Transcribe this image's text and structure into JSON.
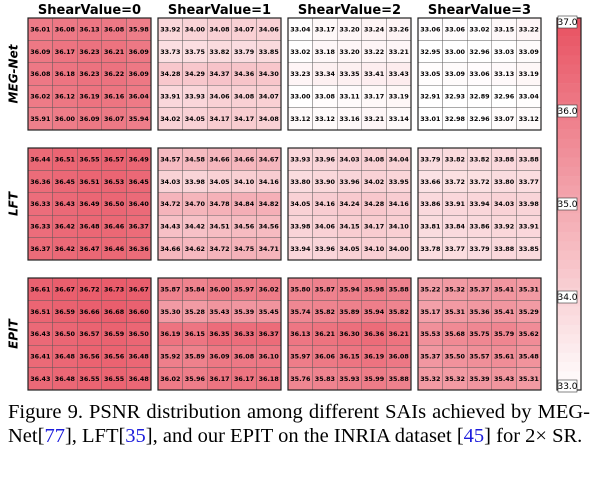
{
  "chart_data": {
    "type": "heatmap",
    "columns": [
      "ShearValue=0",
      "ShearValue=1",
      "ShearValue=2",
      "ShearValue=3"
    ],
    "rows": [
      "MEG-Net",
      "LFT",
      "EPIT"
    ],
    "colorbar": {
      "ticks": [
        "37.0",
        "36.0",
        "35.0",
        "34.0",
        "33.0"
      ],
      "range": [
        33.0,
        37.0
      ]
    },
    "grids": [
      [
        [
          [
            36.01,
            36.08,
            36.13,
            36.08,
            35.98
          ],
          [
            36.09,
            36.17,
            36.23,
            36.21,
            36.09
          ],
          [
            36.08,
            36.18,
            36.23,
            36.22,
            36.09
          ],
          [
            36.02,
            36.12,
            36.19,
            36.16,
            36.04
          ],
          [
            35.91,
            36.0,
            36.09,
            36.07,
            35.94
          ]
        ],
        [
          [
            33.92,
            34.0,
            34.08,
            34.07,
            34.06
          ],
          [
            33.73,
            33.75,
            33.82,
            33.79,
            33.85
          ],
          [
            34.28,
            34.29,
            34.37,
            34.36,
            34.3
          ],
          [
            33.91,
            33.93,
            34.06,
            34.08,
            34.07
          ],
          [
            34.02,
            34.05,
            34.17,
            34.17,
            34.08
          ]
        ],
        [
          [
            33.04,
            33.17,
            33.2,
            33.24,
            33.26
          ],
          [
            33.02,
            33.18,
            33.2,
            33.22,
            33.21
          ],
          [
            33.23,
            33.34,
            33.35,
            33.41,
            33.43
          ],
          [
            33.0,
            33.08,
            33.11,
            33.17,
            33.19
          ],
          [
            33.12,
            33.12,
            33.16,
            33.21,
            33.14
          ]
        ],
        [
          [
            33.06,
            33.06,
            33.02,
            33.15,
            33.22
          ],
          [
            32.95,
            33.0,
            32.96,
            33.03,
            33.09
          ],
          [
            33.05,
            33.09,
            33.06,
            33.13,
            33.19
          ],
          [
            32.91,
            32.93,
            32.89,
            32.96,
            33.04
          ],
          [
            33.01,
            32.98,
            32.96,
            33.07,
            33.12
          ]
        ]
      ],
      [
        [
          [
            36.44,
            36.51,
            36.55,
            36.57,
            36.49
          ],
          [
            36.36,
            36.45,
            36.51,
            36.53,
            36.45
          ],
          [
            36.33,
            36.43,
            36.49,
            36.5,
            36.4
          ],
          [
            36.33,
            36.42,
            36.48,
            36.46,
            36.37
          ],
          [
            36.37,
            36.42,
            36.47,
            36.46,
            36.36
          ]
        ],
        [
          [
            34.57,
            34.58,
            34.66,
            34.66,
            34.67
          ],
          [
            34.03,
            33.98,
            34.05,
            34.1,
            34.16
          ],
          [
            34.72,
            34.7,
            34.78,
            34.84,
            34.82
          ],
          [
            34.43,
            34.42,
            34.51,
            34.56,
            34.56
          ],
          [
            34.66,
            34.62,
            34.72,
            34.75,
            34.71
          ]
        ],
        [
          [
            33.93,
            33.96,
            34.03,
            34.08,
            34.04
          ],
          [
            33.8,
            33.9,
            33.96,
            34.02,
            33.95
          ],
          [
            34.05,
            34.16,
            34.24,
            34.28,
            34.16
          ],
          [
            33.98,
            34.06,
            34.15,
            34.17,
            34.1
          ],
          [
            33.94,
            33.96,
            34.05,
            34.1,
            34.0
          ]
        ],
        [
          [
            33.79,
            33.82,
            33.82,
            33.88,
            33.88
          ],
          [
            33.66,
            33.72,
            33.72,
            33.8,
            33.77
          ],
          [
            33.86,
            33.91,
            33.94,
            34.03,
            33.98
          ],
          [
            33.81,
            33.84,
            33.86,
            33.92,
            33.91
          ],
          [
            33.78,
            33.77,
            33.79,
            33.88,
            33.85
          ]
        ]
      ],
      [
        [
          [
            36.61,
            36.67,
            36.72,
            36.73,
            36.67
          ],
          [
            36.51,
            36.59,
            36.66,
            36.68,
            36.6
          ],
          [
            36.43,
            36.5,
            36.57,
            36.59,
            36.5
          ],
          [
            36.41,
            36.48,
            36.56,
            36.56,
            36.48
          ],
          [
            36.43,
            36.48,
            36.55,
            36.55,
            36.48
          ]
        ],
        [
          [
            35.87,
            35.84,
            36.0,
            35.97,
            36.02
          ],
          [
            35.3,
            35.28,
            35.43,
            35.39,
            35.45
          ],
          [
            36.19,
            36.15,
            36.35,
            36.33,
            36.37
          ],
          [
            35.92,
            35.89,
            36.09,
            36.08,
            36.1
          ],
          [
            36.02,
            35.96,
            36.17,
            36.17,
            36.18
          ]
        ],
        [
          [
            35.8,
            35.87,
            35.94,
            35.98,
            35.88
          ],
          [
            35.74,
            35.82,
            35.89,
            35.94,
            35.82
          ],
          [
            36.13,
            36.21,
            36.3,
            36.36,
            36.21
          ],
          [
            35.97,
            36.06,
            36.15,
            36.19,
            36.08
          ],
          [
            35.76,
            35.83,
            35.93,
            35.99,
            35.88
          ]
        ],
        [
          [
            35.22,
            35.32,
            35.37,
            35.41,
            35.31
          ],
          [
            35.17,
            35.31,
            35.36,
            35.41,
            35.29
          ],
          [
            35.53,
            35.68,
            35.75,
            35.79,
            35.62
          ],
          [
            35.37,
            35.5,
            35.57,
            35.61,
            35.48
          ],
          [
            35.32,
            35.32,
            35.39,
            35.43,
            35.31
          ]
        ]
      ]
    ]
  },
  "caption": {
    "prefix": "Figure 9. PSNR distribution among different SAIs achieved by MEG-Net[",
    "ref1": "77",
    "mid1": "], LFT[",
    "ref2": "35",
    "mid2": "], and our EPIT on the INRIA dataset [",
    "ref3": "45",
    "suffix": "] for 2× SR."
  }
}
